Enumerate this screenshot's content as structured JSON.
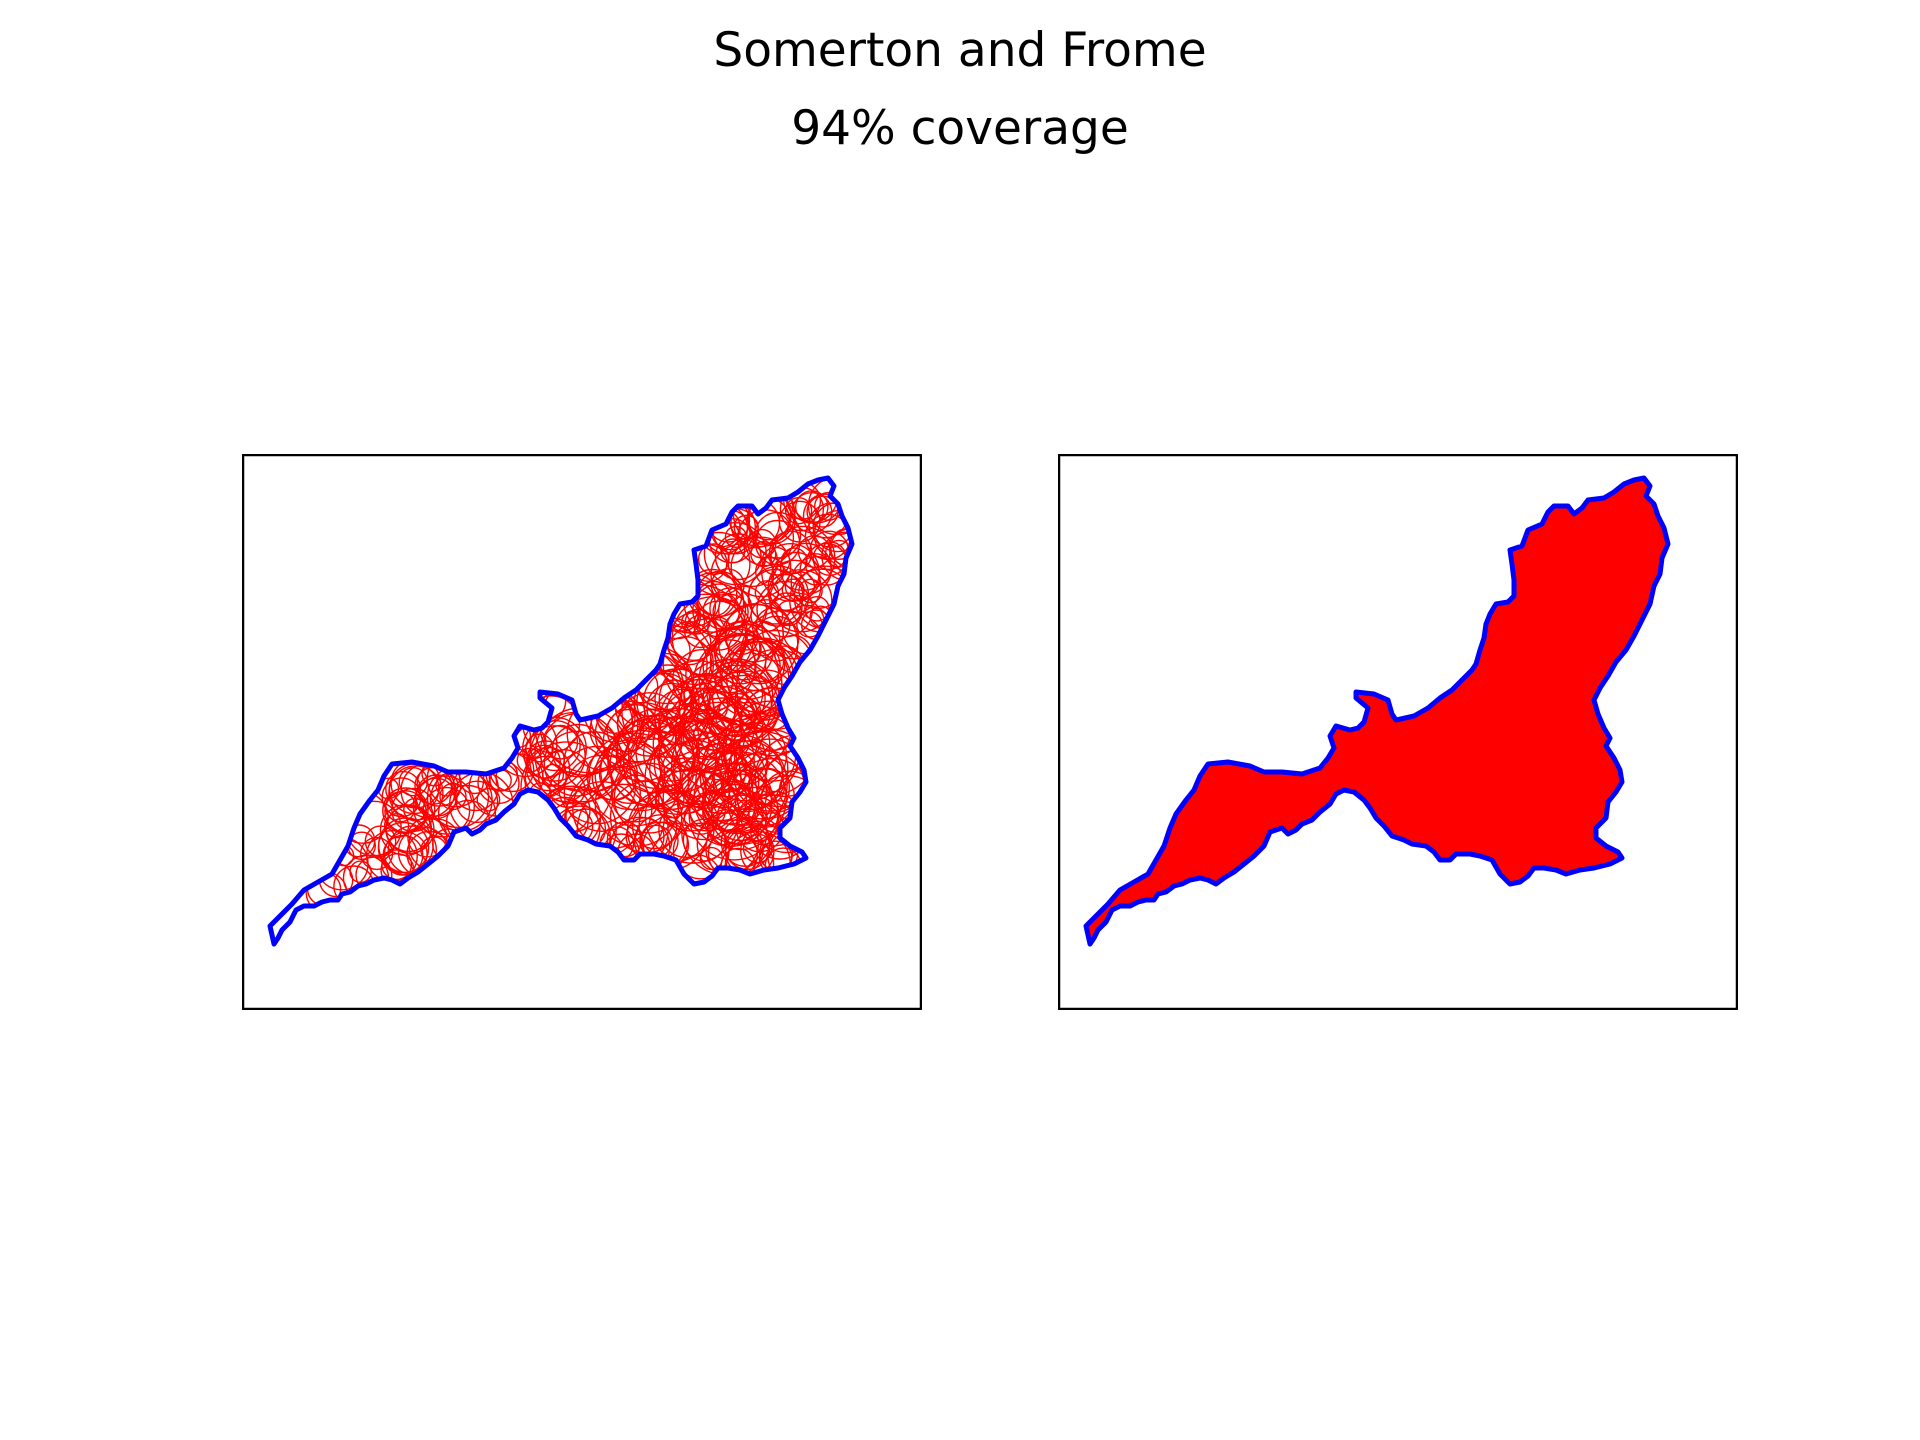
{
  "figure": {
    "title": "Somerton and Frome",
    "subtitle": "94% coverage"
  },
  "colors": {
    "boundary": "#0000ff",
    "coverage": "#ff0000",
    "frame": "#000000",
    "background": "#ffffff"
  },
  "panels": [
    {
      "id": "left",
      "style": "circle-outlines"
    },
    {
      "id": "right",
      "style": "filled-coverage"
    }
  ],
  "chart_data": {
    "type": "map",
    "region": "Somerton and Frome",
    "coverage_percent": 94,
    "panel_count": 2,
    "axes_ticks": false
  }
}
